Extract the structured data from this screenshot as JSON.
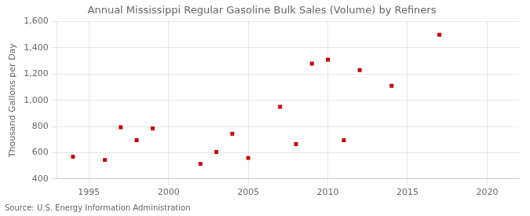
{
  "chart_data": {
    "type": "scatter",
    "title": "Annual Mississippi Regular Gasoline Bulk Sales (Volume) by Refiners",
    "y_label": "Thousand Gallons per Day",
    "annotation": "Source: U.S. Energy Information Administration",
    "x": [
      1994,
      1996,
      1997,
      1998,
      1999,
      2002,
      2003,
      2004,
      2005,
      2007,
      2008,
      2009,
      2010,
      2011,
      2012,
      2014,
      2017
    ],
    "values": [
      570,
      545,
      795,
      695,
      785,
      515,
      605,
      745,
      560,
      950,
      665,
      1280,
      1310,
      695,
      1230,
      1110,
      1500
    ],
    "color": "#cc0000",
    "marker": "square",
    "xlim": [
      1993,
      2022
    ],
    "ylim": [
      400,
      1600
    ],
    "xticks": [
      1995,
      2000,
      2005,
      2010,
      2015,
      2020
    ],
    "yticks": [
      400,
      600,
      800,
      {
        "value": 1000,
        "label": "1,000"
      },
      {
        "value": 1200,
        "label": "1,200"
      },
      {
        "value": 1400,
        "label": "1,400"
      },
      {
        "value": 1600,
        "label": "1,600"
      }
    ],
    "grid": true
  }
}
